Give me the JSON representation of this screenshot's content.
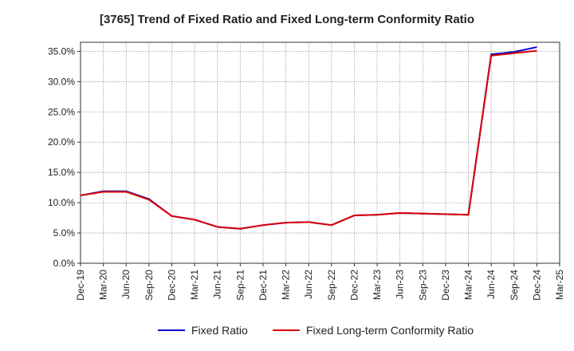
{
  "chart_data": {
    "type": "line",
    "title": "[3765]  Trend of Fixed Ratio and Fixed Long-term Conformity Ratio",
    "x": [
      "Dec-19",
      "Mar-20",
      "Jun-20",
      "Sep-20",
      "Dec-20",
      "Mar-21",
      "Jun-21",
      "Sep-21",
      "Dec-21",
      "Mar-22",
      "Jun-22",
      "Sep-22",
      "Dec-22",
      "Mar-23",
      "Jun-23",
      "Sep-23",
      "Dec-23",
      "Mar-24",
      "Jun-24",
      "Sep-24",
      "Dec-24",
      "Mar-25"
    ],
    "y_ticks": [
      "0.0%",
      "5.0%",
      "10.0%",
      "15.0%",
      "20.0%",
      "25.0%",
      "30.0%",
      "35.0%"
    ],
    "ylim": [
      0,
      36.5
    ],
    "grid": true,
    "legend_position": "bottom",
    "series": [
      {
        "name": "Fixed Ratio",
        "color": "#0000cc",
        "values": [
          11.2,
          11.9,
          11.9,
          10.6,
          7.8,
          7.2,
          6.0,
          5.7,
          6.3,
          6.7,
          6.8,
          6.3,
          7.9,
          8.0,
          8.3,
          8.2,
          8.1,
          8.0,
          34.5,
          34.9,
          35.7,
          null
        ]
      },
      {
        "name": "Fixed Long-term Conformity Ratio",
        "color": "#dd0000",
        "values": [
          11.2,
          11.8,
          11.8,
          10.5,
          7.8,
          7.2,
          6.0,
          5.7,
          6.3,
          6.7,
          6.8,
          6.3,
          7.9,
          8.0,
          8.3,
          8.2,
          8.1,
          8.0,
          34.3,
          34.7,
          35.1,
          null
        ]
      }
    ]
  }
}
